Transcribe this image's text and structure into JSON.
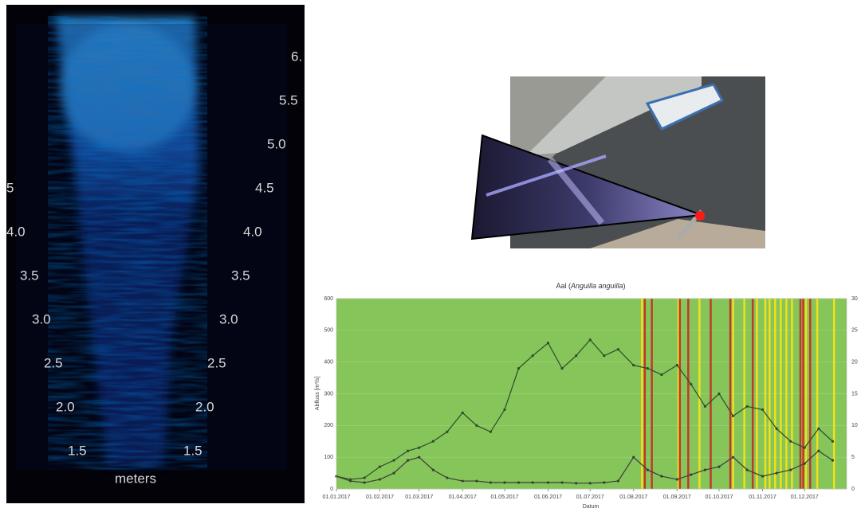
{
  "sonar": {
    "left_labels": [
      "5",
      "4.0",
      "3.5",
      "3.0",
      "2.5",
      "2.0",
      "1.5"
    ],
    "right_labels": [
      "6.",
      "5.5",
      "5.0",
      "4.5",
      "4.0",
      "3.5",
      "3.0",
      "2.5",
      "2.0",
      "1.5"
    ],
    "unit": "meters"
  },
  "chart_data": {
    "type": "line",
    "title_parts": [
      "Aal (",
      "Anguilla anguilla",
      ")"
    ],
    "y_label": "Abfluss [m³/s]",
    "x_label": "Datum",
    "x": [
      "01.01.2017",
      "11.01.2017",
      "21.01.2017",
      "01.02.2017",
      "11.02.2017",
      "21.02.2017",
      "01.03.2017",
      "11.03.2017",
      "21.03.2017",
      "01.04.2017",
      "11.04.2017",
      "21.04.2017",
      "01.05.2017",
      "11.05.2017",
      "21.05.2017",
      "01.06.2017",
      "11.06.2017",
      "21.06.2017",
      "01.07.2017",
      "11.07.2017",
      "21.07.2017",
      "01.08.2017",
      "11.08.2017",
      "21.08.2017",
      "01.09.2017",
      "11.09.2017",
      "21.09.2017",
      "01.10.2017",
      "11.10.2017",
      "21.10.2017",
      "01.11.2017",
      "11.11.2017",
      "21.11.2017",
      "01.12.2017",
      "11.12.2017",
      "21.12.2017"
    ],
    "series": [
      {
        "color": "#2f4a2c",
        "values": [
          40,
          30,
          35,
          70,
          90,
          120,
          130,
          150,
          180,
          240,
          200,
          180,
          250,
          380,
          420,
          460,
          380,
          420,
          470,
          420,
          440,
          390,
          380,
          360,
          390,
          330,
          260,
          300,
          230,
          260,
          250,
          190,
          150,
          130,
          190,
          150
        ]
      },
      {
        "color": "#3b3b3b",
        "values": [
          40,
          25,
          20,
          30,
          50,
          90,
          100,
          60,
          35,
          25,
          25,
          20,
          20,
          20,
          20,
          20,
          20,
          18,
          18,
          20,
          25,
          100,
          60,
          40,
          30,
          45,
          60,
          70,
          100,
          60,
          40,
          50,
          60,
          80,
          120,
          90
        ]
      }
    ],
    "event_lines": [
      {
        "color": "#f2e01a",
        "x": [
          "07.08.2017",
          "02.09.2017",
          "17.09.2017",
          "11.10.2017",
          "19.10.2017",
          "28.10.2017",
          "03.11.2017",
          "06.11.2017",
          "10.11.2017",
          "14.11.2017",
          "18.11.2017",
          "22.11.2017",
          "02.12.2017",
          "10.12.2017",
          "22.12.2017"
        ]
      },
      {
        "color": "#c0392b",
        "x": [
          "09.08.2017",
          "14.08.2017",
          "03.09.2017",
          "09.09.2017",
          "25.09.2017",
          "09.10.2017",
          "25.10.2017",
          "28.11.2017",
          "30.11.2017",
          "05.12.2017"
        ]
      }
    ],
    "background": "#86c55a",
    "xlim": [
      "01.01.2017",
      "31.12.2017"
    ],
    "xticks": [
      "01.01.2017",
      "01.02.2017",
      "01.03.2017",
      "01.04.2017",
      "01.05.2017",
      "01.06.2017",
      "01.07.2017",
      "01.08.2017",
      "01.09.2017",
      "01.10.2017",
      "01.11.2017",
      "01.12.2017"
    ],
    "ylim": [
      0,
      600
    ],
    "yticks": [
      0,
      100,
      200,
      300,
      400,
      500,
      600
    ],
    "y2lim": [
      0,
      30
    ],
    "y2ticks": [
      0,
      5,
      10,
      15,
      20,
      25,
      30
    ],
    "grid": true
  }
}
